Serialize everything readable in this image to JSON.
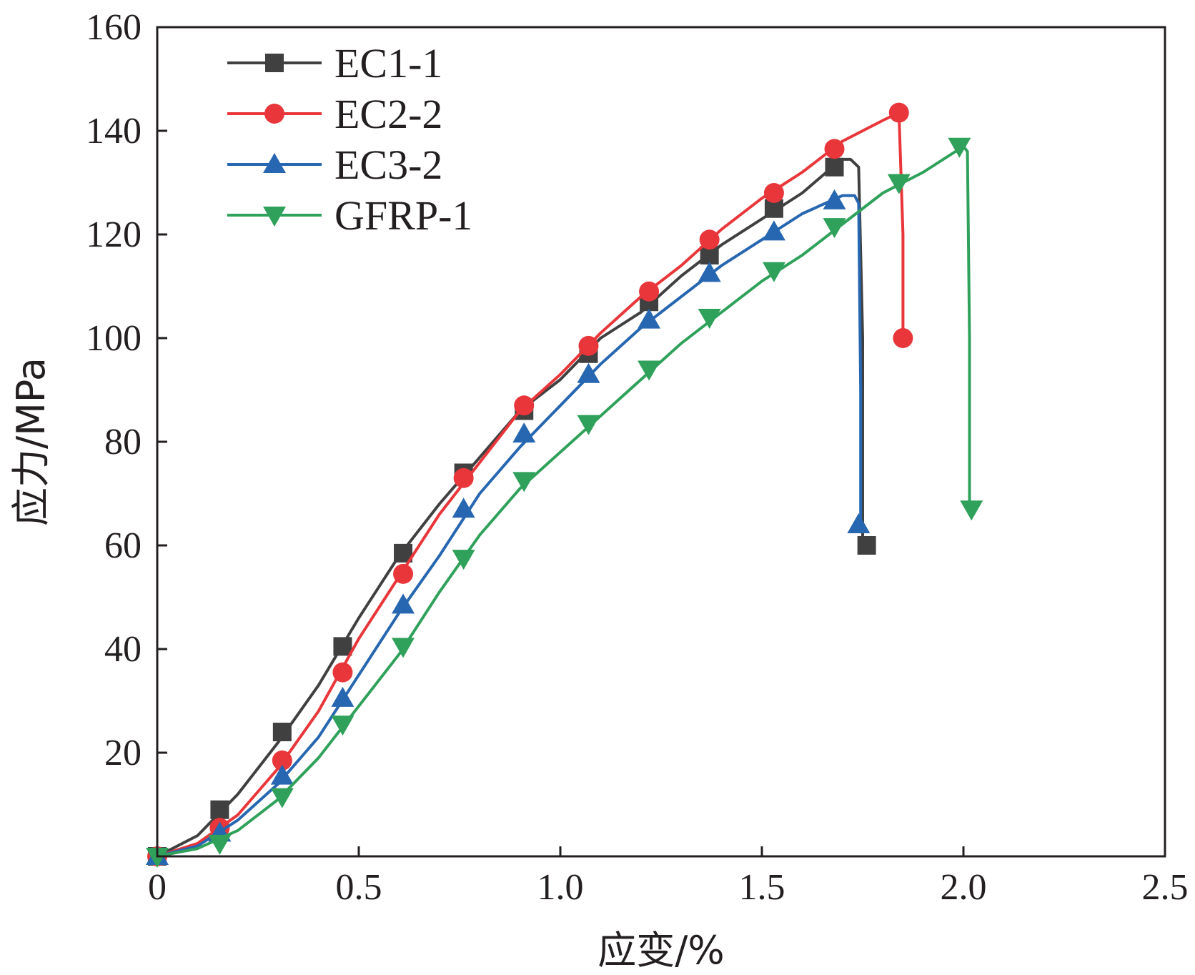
{
  "chart_data": {
    "type": "line",
    "title": "",
    "xlabel": "应变/%",
    "ylabel": "应力/MPa",
    "xlim": [
      0,
      2.5
    ],
    "ylim": [
      0,
      160
    ],
    "x_ticks": [
      0,
      0.5,
      1.0,
      1.5,
      2.0,
      2.5
    ],
    "x_tick_labels": [
      "0",
      "0.5",
      "1.0",
      "1.5",
      "2.0",
      "2.5"
    ],
    "y_ticks": [
      20,
      40,
      60,
      80,
      100,
      120,
      140,
      160
    ],
    "y_tick_labels": [
      "20",
      "40",
      "60",
      "80",
      "100",
      "120",
      "140",
      "160"
    ],
    "grid": false,
    "legend_position": "top-left",
    "series": [
      {
        "name": "EC1-1",
        "color": "#404040",
        "marker": "square",
        "curve": [
          [
            0,
            0
          ],
          [
            0.1,
            4
          ],
          [
            0.2,
            12
          ],
          [
            0.3,
            22
          ],
          [
            0.4,
            33
          ],
          [
            0.5,
            46
          ],
          [
            0.6,
            58
          ],
          [
            0.7,
            68
          ],
          [
            0.8,
            77
          ],
          [
            0.9,
            86
          ],
          [
            1.0,
            92
          ],
          [
            1.1,
            100
          ],
          [
            1.2,
            105
          ],
          [
            1.3,
            112
          ],
          [
            1.4,
            118
          ],
          [
            1.5,
            123
          ],
          [
            1.6,
            128
          ],
          [
            1.66,
            132
          ],
          [
            1.7,
            134.5
          ],
          [
            1.72,
            134.5
          ],
          [
            1.74,
            133
          ],
          [
            1.75,
            100
          ],
          [
            1.75,
            60
          ]
        ],
        "markers": [
          [
            0,
            0
          ],
          [
            0.155,
            9
          ],
          [
            0.31,
            24
          ],
          [
            0.46,
            40.5
          ],
          [
            0.61,
            58.5
          ],
          [
            0.76,
            74
          ],
          [
            0.91,
            86
          ],
          [
            1.07,
            97
          ],
          [
            1.22,
            107
          ],
          [
            1.37,
            116
          ],
          [
            1.53,
            125
          ],
          [
            1.68,
            133
          ],
          [
            1.76,
            60
          ]
        ]
      },
      {
        "name": "EC2-2",
        "color": "#e8363a",
        "marker": "circle",
        "curve": [
          [
            0,
            0
          ],
          [
            0.1,
            2.5
          ],
          [
            0.2,
            8
          ],
          [
            0.3,
            17
          ],
          [
            0.4,
            28
          ],
          [
            0.5,
            42
          ],
          [
            0.6,
            54
          ],
          [
            0.7,
            66
          ],
          [
            0.8,
            76
          ],
          [
            0.9,
            86
          ],
          [
            1.0,
            93
          ],
          [
            1.1,
            101
          ],
          [
            1.2,
            108
          ],
          [
            1.3,
            114
          ],
          [
            1.4,
            121
          ],
          [
            1.5,
            127
          ],
          [
            1.6,
            132
          ],
          [
            1.7,
            138
          ],
          [
            1.8,
            142
          ],
          [
            1.84,
            143.5
          ],
          [
            1.85,
            120
          ],
          [
            1.85,
            100
          ]
        ],
        "markers": [
          [
            0,
            0
          ],
          [
            0.155,
            5.5
          ],
          [
            0.31,
            18.5
          ],
          [
            0.46,
            35.5
          ],
          [
            0.61,
            54.5
          ],
          [
            0.76,
            73
          ],
          [
            0.91,
            87
          ],
          [
            1.07,
            98.5
          ],
          [
            1.22,
            109
          ],
          [
            1.37,
            119
          ],
          [
            1.53,
            128
          ],
          [
            1.68,
            136.5
          ],
          [
            1.84,
            143.5
          ],
          [
            1.85,
            100
          ]
        ]
      },
      {
        "name": "EC3-2",
        "color": "#2766b0",
        "marker": "triangle-up",
        "curve": [
          [
            0,
            0
          ],
          [
            0.1,
            2
          ],
          [
            0.2,
            7
          ],
          [
            0.3,
            14
          ],
          [
            0.4,
            23
          ],
          [
            0.5,
            35
          ],
          [
            0.6,
            47
          ],
          [
            0.7,
            58
          ],
          [
            0.8,
            70
          ],
          [
            0.9,
            79
          ],
          [
            1.0,
            87
          ],
          [
            1.1,
            95
          ],
          [
            1.2,
            102
          ],
          [
            1.3,
            108
          ],
          [
            1.4,
            114
          ],
          [
            1.5,
            119
          ],
          [
            1.6,
            124
          ],
          [
            1.7,
            127.5
          ],
          [
            1.73,
            127.5
          ],
          [
            1.74,
            126
          ],
          [
            1.745,
            90
          ],
          [
            1.745,
            64
          ]
        ],
        "markers": [
          [
            0,
            0
          ],
          [
            0.155,
            4.5
          ],
          [
            0.31,
            15.5
          ],
          [
            0.46,
            30.5
          ],
          [
            0.61,
            48.5
          ],
          [
            0.76,
            67
          ],
          [
            0.91,
            81.5
          ],
          [
            1.07,
            93
          ],
          [
            1.22,
            103.5
          ],
          [
            1.37,
            112.5
          ],
          [
            1.53,
            120.5
          ],
          [
            1.68,
            126.5
          ],
          [
            1.74,
            64
          ]
        ]
      },
      {
        "name": "GFRP-1",
        "color": "#2fa15a",
        "marker": "triangle-down",
        "curve": [
          [
            0,
            0
          ],
          [
            0.1,
            1.5
          ],
          [
            0.2,
            5
          ],
          [
            0.3,
            11
          ],
          [
            0.4,
            19
          ],
          [
            0.5,
            29
          ],
          [
            0.6,
            39
          ],
          [
            0.7,
            51
          ],
          [
            0.8,
            62
          ],
          [
            0.9,
            71
          ],
          [
            1.0,
            78
          ],
          [
            1.1,
            85
          ],
          [
            1.2,
            92
          ],
          [
            1.3,
            99
          ],
          [
            1.4,
            105
          ],
          [
            1.5,
            111
          ],
          [
            1.6,
            116
          ],
          [
            1.7,
            122
          ],
          [
            1.8,
            128
          ],
          [
            1.9,
            132
          ],
          [
            2.0,
            137
          ],
          [
            2.01,
            136
          ],
          [
            2.015,
            100
          ],
          [
            2.015,
            67
          ]
        ],
        "markers": [
          [
            0,
            0
          ],
          [
            0.155,
            2.5
          ],
          [
            0.31,
            11.5
          ],
          [
            0.46,
            25.5
          ],
          [
            0.61,
            40.5
          ],
          [
            0.76,
            57.5
          ],
          [
            0.91,
            72.5
          ],
          [
            1.07,
            83.5
          ],
          [
            1.22,
            94
          ],
          [
            1.37,
            104
          ],
          [
            1.53,
            113
          ],
          [
            1.68,
            121.5
          ],
          [
            1.84,
            130
          ],
          [
            1.99,
            137
          ],
          [
            2.02,
            67
          ]
        ]
      }
    ]
  }
}
